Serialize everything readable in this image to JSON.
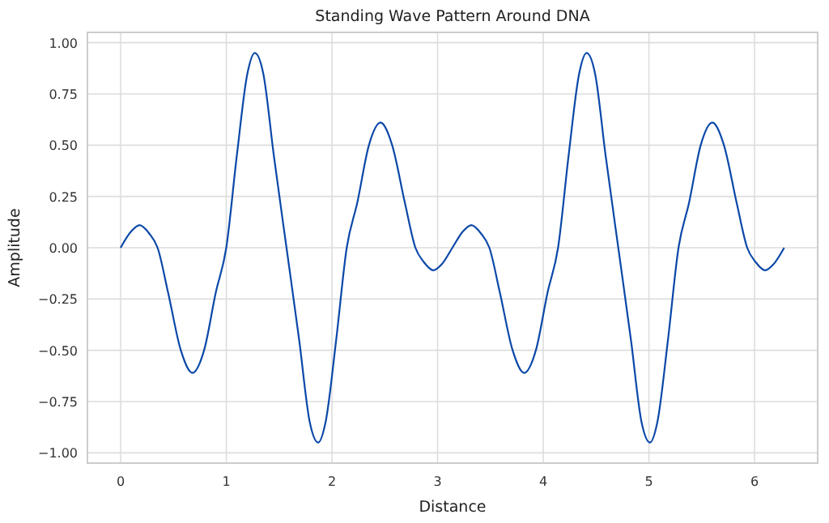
{
  "chart_data": {
    "type": "line",
    "title": "Standing Wave Pattern Around DNA",
    "xlabel": "Distance",
    "ylabel": "Amplitude",
    "grid": true,
    "line_style": "solid",
    "marker": "none",
    "xlim": [
      -0.314,
      6.597
    ],
    "ylim": [
      -1.05,
      1.05
    ],
    "xticks": [
      0,
      1,
      2,
      3,
      4,
      5,
      6
    ],
    "yticks": [
      {
        "value": -1,
        "label": "−1.00"
      },
      {
        "value": -0.75,
        "label": "−0.75"
      },
      {
        "value": -0.5,
        "label": "−0.50"
      },
      {
        "value": -0.25,
        "label": "−0.25"
      },
      {
        "value": 0,
        "label": "0.00"
      },
      {
        "value": 0.25,
        "label": "0.25"
      },
      {
        "value": 0.5,
        "label": "0.50"
      },
      {
        "value": 0.75,
        "label": "0.75"
      },
      {
        "value": 1,
        "label": "1.00"
      }
    ],
    "x": [
      0,
      0.1,
      0.18,
      0.27,
      0.35,
      0.45,
      0.57,
      0.68,
      0.79,
      0.9,
      1.0,
      1.1,
      1.2,
      1.27,
      1.35,
      1.45,
      1.57,
      1.69,
      1.79,
      1.87,
      1.94,
      2.04,
      2.14,
      2.24,
      2.35,
      2.46,
      2.57,
      2.69,
      2.79,
      2.87,
      2.96,
      3.04,
      3.14,
      3.24,
      3.32,
      3.41,
      3.49,
      3.59,
      3.71,
      3.82,
      3.93,
      4.04,
      4.14,
      4.24,
      4.34,
      4.41,
      4.49,
      4.59,
      4.71,
      4.83,
      4.93,
      5.01,
      5.08,
      5.18,
      5.28,
      5.38,
      5.49,
      5.6,
      5.71,
      5.83,
      5.93,
      6.01,
      6.1,
      6.18,
      6.28
    ],
    "series": [
      {
        "color": "#0b48a8",
        "values": [
          0,
          0.08,
          0.11,
          0.07,
          0,
          -0.22,
          -0.5,
          -0.61,
          -0.5,
          -0.22,
          0,
          0.45,
          0.85,
          0.95,
          0.85,
          0.45,
          0,
          -0.45,
          -0.85,
          -0.95,
          -0.85,
          -0.45,
          0,
          0.22,
          0.5,
          0.61,
          0.5,
          0.22,
          0,
          -0.07,
          -0.11,
          -0.08,
          0,
          0.08,
          0.11,
          0.07,
          0,
          -0.22,
          -0.5,
          -0.61,
          -0.5,
          -0.22,
          0,
          0.45,
          0.85,
          0.95,
          0.85,
          0.45,
          0,
          -0.45,
          -0.85,
          -0.95,
          -0.85,
          -0.45,
          0,
          0.22,
          0.5,
          0.61,
          0.5,
          0.22,
          0,
          -0.07,
          -0.11,
          -0.08,
          0
        ]
      }
    ]
  }
}
